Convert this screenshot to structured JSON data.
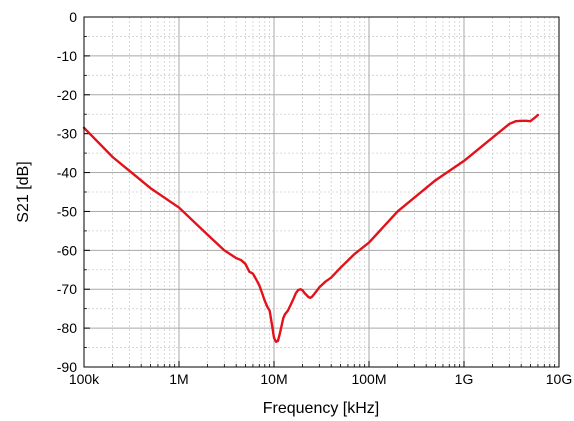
{
  "chart_data": {
    "type": "line",
    "title": "",
    "xlabel": "Frequency [kHz]",
    "ylabel": "S21 [dB]",
    "x_scale": "log",
    "xlim": [
      100000,
      10000000000
    ],
    "ylim": [
      -90,
      0
    ],
    "grid": true,
    "grid_minor": true,
    "x_ticks": [
      {
        "value": 100000,
        "label": "100k"
      },
      {
        "value": 1000000,
        "label": "1M"
      },
      {
        "value": 10000000,
        "label": "10M"
      },
      {
        "value": 100000000,
        "label": "100M"
      },
      {
        "value": 1000000000,
        "label": "1G"
      },
      {
        "value": 10000000000,
        "label": "10G"
      }
    ],
    "y_ticks": [
      {
        "value": 0,
        "label": "0"
      },
      {
        "value": -10,
        "label": "-10"
      },
      {
        "value": -20,
        "label": "-20"
      },
      {
        "value": -30,
        "label": "-30"
      },
      {
        "value": -40,
        "label": "-40"
      },
      {
        "value": -50,
        "label": "-50"
      },
      {
        "value": -60,
        "label": "-60"
      },
      {
        "value": -70,
        "label": "-70"
      },
      {
        "value": -80,
        "label": "-80"
      },
      {
        "value": -90,
        "label": "-90"
      }
    ],
    "series": [
      {
        "color": "#e3121a",
        "x": [
          100000,
          200000,
          500000,
          1000000,
          2000000,
          3000000,
          4000000,
          4500000,
          5000000,
          5500000,
          6000000,
          6500000,
          7000000,
          7500000,
          8000000,
          8500000,
          9000000,
          9500000,
          10000000,
          10500000,
          11000000,
          11500000,
          12000000,
          12500000,
          13000000,
          13500000,
          14000000,
          15000000,
          16000000,
          17000000,
          18000000,
          19000000,
          20000000,
          21000000,
          22000000,
          23000000,
          24000000,
          25000000,
          26000000,
          28000000,
          30000000,
          35000000,
          40000000,
          50000000,
          70000000,
          100000000,
          200000000,
          500000000,
          1000000000,
          2000000000,
          3000000000,
          3500000000,
          4000000000,
          4500000000,
          5000000000,
          5500000000,
          6000000000
        ],
        "y": [
          -28.5,
          -36,
          -44,
          -49,
          -56,
          -60,
          -62,
          -62.5,
          -63.5,
          -65.5,
          -66,
          -67.5,
          -69,
          -71,
          -73,
          -74.5,
          -75.5,
          -79,
          -82.5,
          -83.5,
          -83.3,
          -81.5,
          -79.5,
          -77.5,
          -76.5,
          -76,
          -75.5,
          -74,
          -72.5,
          -71,
          -70.2,
          -70,
          -70.3,
          -71,
          -71.5,
          -72,
          -72.2,
          -72,
          -71.5,
          -70.5,
          -69.5,
          -68,
          -67,
          -64.5,
          -61,
          -58,
          -50,
          -42,
          -37,
          -31,
          -27.5,
          -26.8,
          -26.7,
          -26.7,
          -26.8,
          -26,
          -25.2
        ]
      }
    ]
  }
}
